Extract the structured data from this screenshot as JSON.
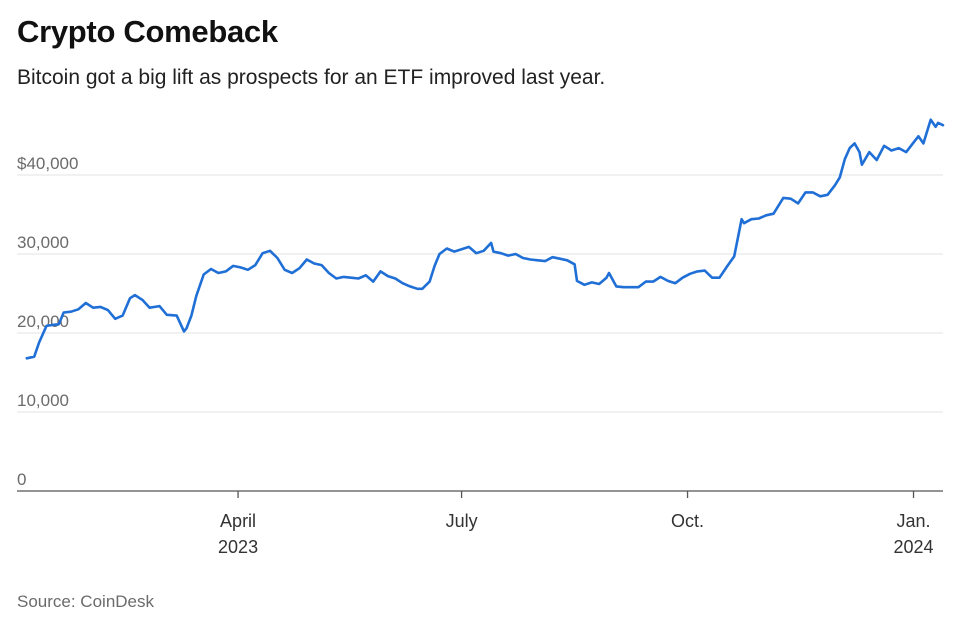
{
  "title": "Crypto Comeback",
  "subtitle": "Bitcoin got a big lift as prospects for an ETF improved last year.",
  "source": "Source: CoinDesk",
  "colors": {
    "line": "#1f6fd6",
    "grid": "#e3e3e3",
    "axis": "#555555"
  },
  "chart_data": {
    "type": "line",
    "title": "Crypto Comeback",
    "subtitle": "Bitcoin got a big lift as prospects for an ETF improved last year.",
    "xlabel": "",
    "ylabel": "",
    "ylim": [
      0,
      50000
    ],
    "xlim": [
      "2023-01-01",
      "2024-01-13"
    ],
    "grid": true,
    "y_ticks": [
      {
        "value": 0,
        "label": "0"
      },
      {
        "value": 10000,
        "label": "10,000"
      },
      {
        "value": 20000,
        "label": "20,000"
      },
      {
        "value": 30000,
        "label": "30,000"
      },
      {
        "value": 40000,
        "label": "$40,000"
      }
    ],
    "x_ticks": [
      {
        "date": "2023-04-01",
        "label": "April",
        "sublabel": "2023"
      },
      {
        "date": "2023-07-01",
        "label": "July",
        "sublabel": ""
      },
      {
        "date": "2023-10-01",
        "label": "Oct.",
        "sublabel": ""
      },
      {
        "date": "2024-01-01",
        "label": "Jan.",
        "sublabel": "2024"
      }
    ],
    "series": [
      {
        "x": [
          "2023-01-05",
          "2023-01-08",
          "2023-01-10",
          "2023-01-13",
          "2023-01-15",
          "2023-01-18",
          "2023-01-20",
          "2023-01-23",
          "2023-01-26",
          "2023-01-29",
          "2023-02-01",
          "2023-02-04",
          "2023-02-07",
          "2023-02-10",
          "2023-02-13",
          "2023-02-16",
          "2023-02-18",
          "2023-02-21",
          "2023-02-24",
          "2023-02-28",
          "2023-03-03",
          "2023-03-07",
          "2023-03-10",
          "2023-03-11",
          "2023-03-13",
          "2023-03-15",
          "2023-03-18",
          "2023-03-21",
          "2023-03-24",
          "2023-03-27",
          "2023-03-30",
          "2023-04-02",
          "2023-04-05",
          "2023-04-08",
          "2023-04-11",
          "2023-04-14",
          "2023-04-17",
          "2023-04-20",
          "2023-04-23",
          "2023-04-26",
          "2023-04-29",
          "2023-05-02",
          "2023-05-05",
          "2023-05-08",
          "2023-05-11",
          "2023-05-14",
          "2023-05-17",
          "2023-05-20",
          "2023-05-23",
          "2023-05-26",
          "2023-05-29",
          "2023-06-01",
          "2023-06-04",
          "2023-06-07",
          "2023-06-10",
          "2023-06-13",
          "2023-06-15",
          "2023-06-18",
          "2023-06-20",
          "2023-06-22",
          "2023-06-25",
          "2023-06-28",
          "2023-07-01",
          "2023-07-04",
          "2023-07-07",
          "2023-07-10",
          "2023-07-13",
          "2023-07-14",
          "2023-07-17",
          "2023-07-20",
          "2023-07-23",
          "2023-07-26",
          "2023-07-29",
          "2023-08-01",
          "2023-08-04",
          "2023-08-07",
          "2023-08-10",
          "2023-08-13",
          "2023-08-16",
          "2023-08-17",
          "2023-08-20",
          "2023-08-23",
          "2023-08-26",
          "2023-08-29",
          "2023-08-30",
          "2023-09-02",
          "2023-09-05",
          "2023-09-08",
          "2023-09-11",
          "2023-09-14",
          "2023-09-17",
          "2023-09-20",
          "2023-09-23",
          "2023-09-26",
          "2023-09-29",
          "2023-10-02",
          "2023-10-05",
          "2023-10-08",
          "2023-10-11",
          "2023-10-14",
          "2023-10-17",
          "2023-10-20",
          "2023-10-23",
          "2023-10-24",
          "2023-10-27",
          "2023-10-30",
          "2023-11-02",
          "2023-11-05",
          "2023-11-09",
          "2023-11-12",
          "2023-11-15",
          "2023-11-18",
          "2023-11-21",
          "2023-11-24",
          "2023-11-27",
          "2023-11-30",
          "2023-12-02",
          "2023-12-04",
          "2023-12-06",
          "2023-12-08",
          "2023-12-10",
          "2023-12-11",
          "2023-12-14",
          "2023-12-17",
          "2023-12-20",
          "2023-12-23",
          "2023-12-26",
          "2023-12-29",
          "2024-01-01",
          "2024-01-03",
          "2024-01-05",
          "2024-01-08",
          "2024-01-10",
          "2024-01-11",
          "2024-01-13"
        ],
        "values": [
          16800,
          17000,
          18800,
          20900,
          21000,
          21100,
          22600,
          22700,
          23000,
          23800,
          23200,
          23300,
          22900,
          21800,
          22200,
          24400,
          24800,
          24200,
          23200,
          23400,
          22300,
          22200,
          20200,
          20600,
          22200,
          24700,
          27400,
          28100,
          27600,
          27800,
          28500,
          28300,
          28000,
          28600,
          30100,
          30400,
          29500,
          28000,
          27600,
          28200,
          29300,
          28800,
          28600,
          27600,
          26900,
          27100,
          27000,
          26900,
          27300,
          26500,
          27800,
          27200,
          26900,
          26300,
          25900,
          25600,
          25600,
          26500,
          28500,
          30000,
          30700,
          30300,
          30600,
          30900,
          30100,
          30400,
          31400,
          30300,
          30100,
          29800,
          30000,
          29500,
          29300,
          29200,
          29100,
          29600,
          29400,
          29200,
          28700,
          26600,
          26100,
          26400,
          26200,
          27000,
          27600,
          25900,
          25800,
          25800,
          25800,
          26500,
          26500,
          27100,
          26600,
          26300,
          27000,
          27500,
          27800,
          27900,
          27000,
          27000,
          28400,
          29700,
          34400,
          33900,
          34400,
          34500,
          34900,
          35100,
          37100,
          37000,
          36400,
          37800,
          37800,
          37300,
          37500,
          38700,
          39700,
          42000,
          43400,
          44000,
          42900,
          41300,
          42900,
          41900,
          43700,
          43100,
          43400,
          42900,
          44100,
          44900,
          44000,
          47000,
          46100,
          46600,
          46300
        ]
      }
    ]
  }
}
